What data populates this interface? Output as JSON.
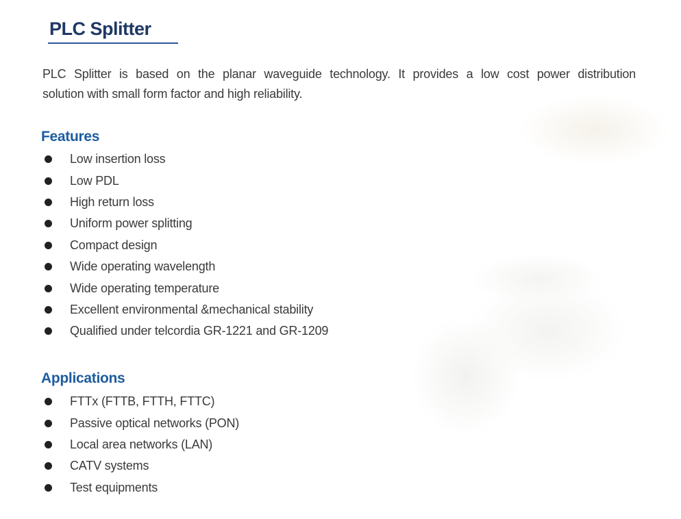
{
  "title_section": {
    "title": "PLC Splitter"
  },
  "description": {
    "lines": [
      "PLC Splitter is based on the planar waveguide technology. It provides a low cost power distribution",
      "solution with small form factor and high reliability."
    ]
  },
  "sections": {
    "features": {
      "heading": "Features",
      "items": [
        "Low insertion loss",
        "Low PDL",
        "High return loss",
        "Uniform power splitting",
        "Compact design",
        "Wide operating wavelength",
        "Wide operating temperature",
        "Excellent environmental &mechanical stability",
        "Qualified under telcordia GR-1221 and GR-1209"
      ]
    },
    "applications": {
      "heading": "Applications",
      "items": [
        "FTTx (FTTB, FTTH, FTTC)",
        "Passive optical networks (PON)",
        "Local area networks (LAN)",
        "CATV systems",
        "Test equipments"
      ]
    }
  },
  "colors": {
    "title": "#1f3864",
    "underline": "#2e5496",
    "heading": "#1c5c9f",
    "body_text": "#3a3a3a",
    "bullet": "#212121",
    "watermark": "#f3f2ee"
  }
}
